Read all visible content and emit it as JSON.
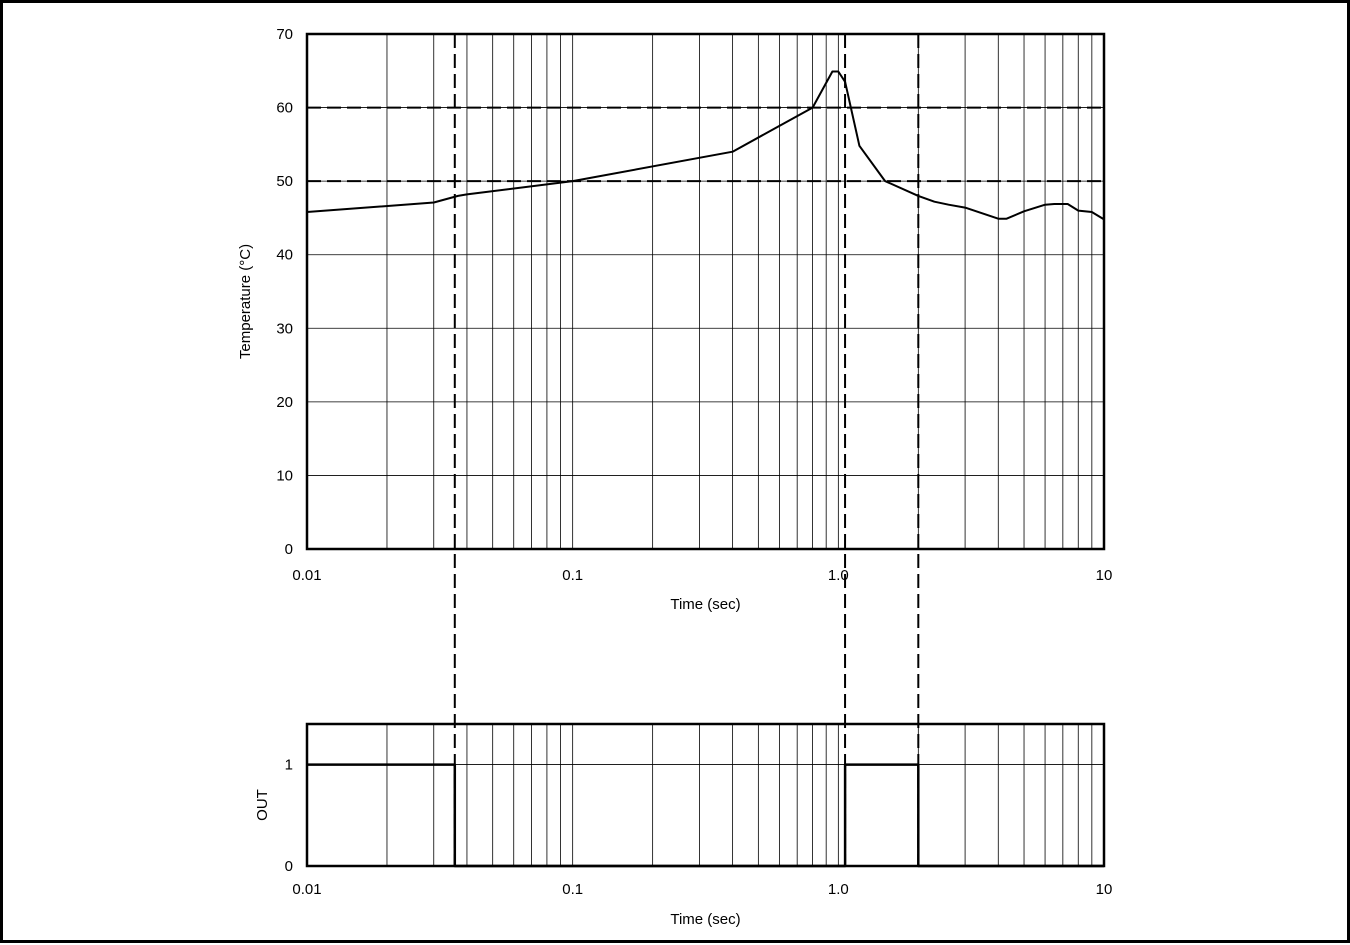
{
  "chart_data": [
    {
      "type": "line",
      "title": "",
      "xlabel": "Time (sec)",
      "ylabel": "Temperature (°C)",
      "xscale": "log",
      "xlim": [
        0.01,
        10
      ],
      "ylim": [
        0,
        70
      ],
      "x_tick_labels": [
        "0.01",
        "0.1",
        "1.0",
        "10"
      ],
      "y_tick_labels": [
        "0",
        "10",
        "20",
        "30",
        "40",
        "50",
        "60",
        "70"
      ],
      "grid": true,
      "reference_lines": {
        "horizontal": [
          50,
          60
        ],
        "vertical": [
          0.036,
          1.06,
          2.0
        ],
        "style": "dashed"
      },
      "series": [
        {
          "x": [
            0.01,
            0.03,
            0.037,
            0.04,
            0.1,
            0.4,
            0.8,
            0.95,
            1.0,
            1.06,
            1.2,
            1.5,
            2.0,
            2.3,
            2.6,
            3.0,
            4.0,
            4.3,
            5.0,
            6.0,
            6.5,
            7.3,
            8.0,
            9.0,
            10.0
          ],
          "y": [
            45.8,
            47.1,
            48.0,
            48.2,
            50.0,
            54.0,
            60.0,
            64.9,
            64.9,
            63.5,
            54.8,
            50.0,
            48.0,
            47.2,
            46.8,
            46.4,
            44.9,
            44.9,
            45.9,
            46.8,
            46.9,
            46.9,
            46.0,
            45.8,
            44.8
          ]
        }
      ]
    },
    {
      "type": "line",
      "title": "",
      "xlabel": "Time (sec)",
      "ylabel": "OUT",
      "xscale": "log",
      "xlim": [
        0.01,
        10
      ],
      "ylim": [
        0,
        1.4
      ],
      "x_tick_labels": [
        "0.01",
        "0.1",
        "1.0",
        "10"
      ],
      "y_tick_labels": [
        "0",
        "1"
      ],
      "grid": true,
      "series": [
        {
          "x": [
            0.01,
            0.036,
            0.036,
            1.06,
            1.06,
            2.0,
            2.0,
            10.0
          ],
          "y": [
            1,
            1,
            0,
            0,
            1,
            1,
            0,
            0
          ]
        }
      ]
    }
  ]
}
